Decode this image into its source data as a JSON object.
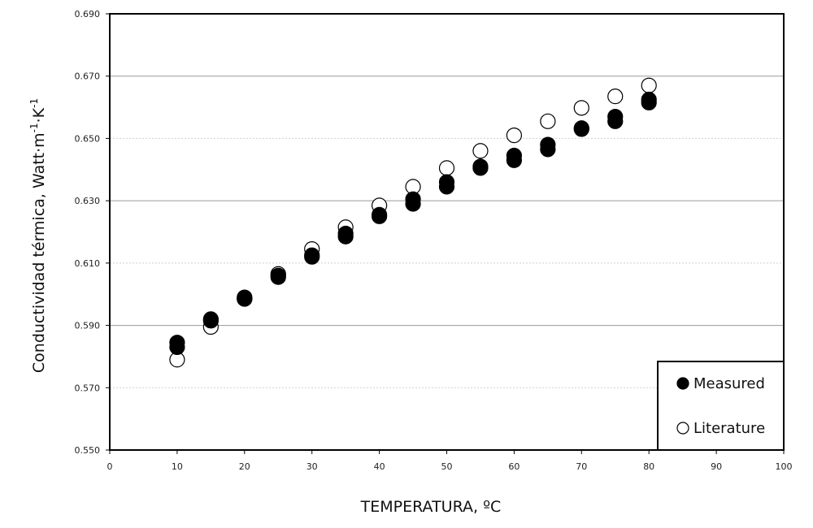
{
  "chart_data": {
    "type": "scatter",
    "title": "",
    "xlabel": "TEMPERATURA, ºC",
    "ylabel": "Conductividad térmica, Watt·m",
    "ylabel_sup1": "-1",
    "ylabel_mid": "·K",
    "ylabel_sup2": "-1",
    "xlim": [
      0,
      100
    ],
    "ylim": [
      0.55,
      0.69
    ],
    "x_ticks": [
      "0",
      "10",
      "20",
      "30",
      "40",
      "50",
      "60",
      "70",
      "80",
      "90",
      "100"
    ],
    "y_ticks": [
      "0.550",
      "0.570",
      "0.590",
      "0.610",
      "0.630",
      "0.650",
      "0.670",
      "0.690"
    ],
    "grid": "horizontal",
    "legend_position": "bottom-right",
    "series": [
      {
        "name": "Measured",
        "marker": "filled-circle",
        "color": "#000000",
        "points": [
          [
            10,
            0.583
          ],
          [
            10,
            0.5845
          ],
          [
            15,
            0.5915
          ],
          [
            15,
            0.592
          ],
          [
            20,
            0.5985
          ],
          [
            20,
            0.599
          ],
          [
            25,
            0.6055
          ],
          [
            25,
            0.606
          ],
          [
            30,
            0.612
          ],
          [
            30,
            0.6125
          ],
          [
            35,
            0.6185
          ],
          [
            35,
            0.6195
          ],
          [
            40,
            0.625
          ],
          [
            40,
            0.6255
          ],
          [
            45,
            0.629
          ],
          [
            45,
            0.6305
          ],
          [
            50,
            0.6345
          ],
          [
            50,
            0.636
          ],
          [
            55,
            0.6405
          ],
          [
            55,
            0.641
          ],
          [
            60,
            0.643
          ],
          [
            60,
            0.6445
          ],
          [
            65,
            0.6465
          ],
          [
            65,
            0.648
          ],
          [
            70,
            0.653
          ],
          [
            70,
            0.6533
          ],
          [
            75,
            0.6555
          ],
          [
            75,
            0.657
          ],
          [
            80,
            0.6615
          ],
          [
            80,
            0.6625
          ]
        ]
      },
      {
        "name": "Literature",
        "marker": "open-circle",
        "color": "#000000",
        "points": [
          [
            10,
            0.579
          ],
          [
            15,
            0.5895
          ],
          [
            20,
            0.5985
          ],
          [
            25,
            0.6065
          ],
          [
            30,
            0.6145
          ],
          [
            35,
            0.6215
          ],
          [
            40,
            0.6285
          ],
          [
            45,
            0.6345
          ],
          [
            50,
            0.6405
          ],
          [
            55,
            0.646
          ],
          [
            60,
            0.651
          ],
          [
            65,
            0.6555
          ],
          [
            70,
            0.6598
          ],
          [
            75,
            0.6635
          ],
          [
            80,
            0.667
          ]
        ]
      }
    ],
    "legend": {
      "items": [
        {
          "label": "Measured",
          "marker": "filled-circle"
        },
        {
          "label": "Literature",
          "marker": "open-circle"
        }
      ]
    }
  }
}
